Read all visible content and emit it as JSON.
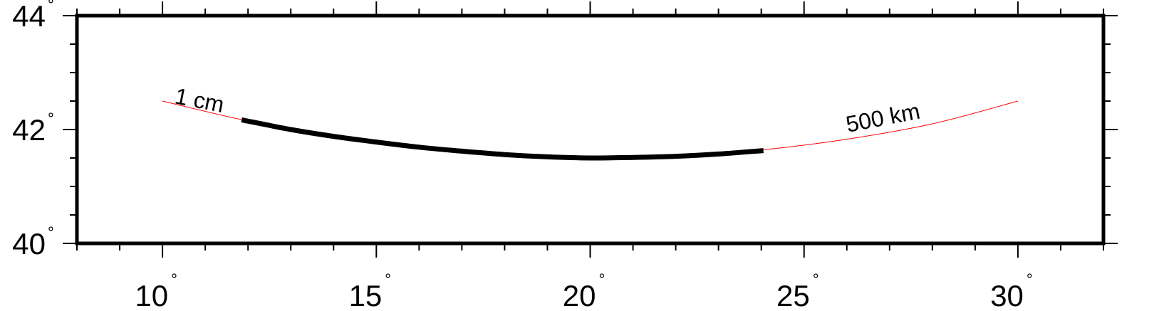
{
  "map": {
    "x_range": [
      8,
      32
    ],
    "y_range": [
      40,
      44
    ],
    "x_ticks": [
      10,
      15,
      20,
      25,
      30
    ],
    "x_tick_labels": [
      "10",
      "15",
      "20",
      "25",
      "30"
    ],
    "y_ticks": [
      40,
      42,
      44
    ],
    "y_tick_labels": [
      "40",
      "42",
      "44"
    ],
    "degree_symbol": "°",
    "thin_line": {
      "color": "#ff0000",
      "points": [
        [
          10,
          42.5
        ],
        [
          12,
          42.15
        ],
        [
          14,
          41.9
        ],
        [
          16,
          41.69
        ],
        [
          18,
          41.56
        ],
        [
          20,
          41.5
        ],
        [
          22,
          41.53
        ],
        [
          24,
          41.64
        ],
        [
          26,
          41.83
        ],
        [
          28,
          42.1
        ],
        [
          30,
          42.5
        ]
      ]
    },
    "thick_segment": {
      "color": "#000000",
      "points": [
        [
          11.85,
          42.17
        ],
        [
          13,
          42.0
        ],
        [
          14,
          41.88
        ],
        [
          15,
          41.78
        ],
        [
          16,
          41.69
        ],
        [
          17,
          41.62
        ],
        [
          18,
          41.56
        ],
        [
          19,
          41.52
        ],
        [
          20,
          41.5
        ],
        [
          21,
          41.51
        ],
        [
          22,
          41.53
        ],
        [
          23,
          41.57
        ],
        [
          24.05,
          41.63
        ]
      ]
    },
    "labels": {
      "start": "1 cm",
      "end": "500 km"
    }
  }
}
